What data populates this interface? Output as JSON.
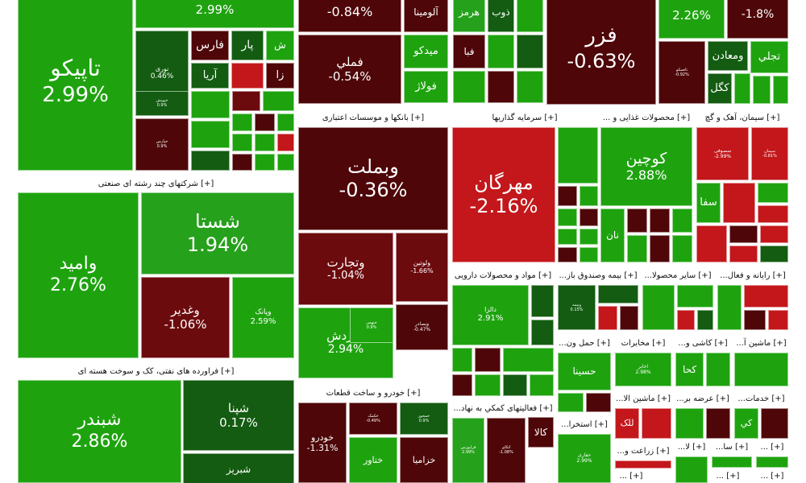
{
  "chart_data": {
    "type": "heatmap",
    "title": "",
    "unit": "%",
    "colors": {
      "strong_green": "#1ea30f",
      "mid_green": "#26a11c",
      "dark_green": "#135c11",
      "strong_red": "#c3171b",
      "dark_red": "#4e0608",
      "maroon": "#6c0b0e"
    },
    "sector_headers": [
      {
        "label": "[+] شرکتهای چند رشته ای صنعتی"
      },
      {
        "label": "[+] فراورده های نفتی، کک و سوخت هسته ای"
      },
      {
        "label": "[+] بانکها و موسسات اعتباری"
      },
      {
        "label": "[+] خودرو و ساخت قطعات"
      },
      {
        "label": "[+] سرمایه گذاریها"
      },
      {
        "label": "[+] محصولات غذایی و ..."
      },
      {
        "label": "[+] سیمان، آهک و گچ"
      },
      {
        "label": "[+] مواد و محصولات دارویی"
      },
      {
        "label": "[+] بیمه وصندوق باز..."
      },
      {
        "label": "[+] سایر محصولا..."
      },
      {
        "label": "[+] رایانه و فعال..."
      },
      {
        "label": "[+] حمل ون..."
      },
      {
        "label": "[+] مخابرات"
      },
      {
        "label": "[+] کاشی و..."
      },
      {
        "label": "[+] ماشین آ..."
      },
      {
        "label": "[+] فعالیتهای کمکي به نهاد..."
      },
      {
        "label": "[+] استخرا..."
      },
      {
        "label": "[+] ماشین الا..."
      },
      {
        "label": "[+] عرضه بر..."
      },
      {
        "label": "[+] خدمات..."
      },
      {
        "label": "[+] زراعت و..."
      },
      {
        "label": "[+] لا..."
      },
      {
        "label": "[+] سا..."
      },
      {
        "label": "[+] ..."
      },
      {
        "label": "[+] ..."
      },
      {
        "label": "[+] ..."
      },
      {
        "label": "[+] ..."
      }
    ],
    "tiles": [
      {
        "symbol": "تاپیکو",
        "change": "2.99%"
      },
      {
        "symbol": "",
        "change": "2.99%"
      },
      {
        "symbol": "نوری",
        "change": "0.46%"
      },
      {
        "symbol": "فارس",
        "change": ""
      },
      {
        "symbol": "پار",
        "change": ""
      },
      {
        "symbol": "ش",
        "change": ""
      },
      {
        "symbol": "آریا",
        "change": ""
      },
      {
        "symbol": "زا",
        "change": ""
      },
      {
        "symbol": "خپارس",
        "change": "0.9%"
      },
      {
        "symbol": "",
        "change": "-0.84%"
      },
      {
        "symbol": "آلومینا",
        "change": ""
      },
      {
        "symbol": "هرمز",
        "change": ""
      },
      {
        "symbol": "ذوب",
        "change": ""
      },
      {
        "symbol": "فملي",
        "change": "-0.54%"
      },
      {
        "symbol": "میدکو",
        "change": ""
      },
      {
        "symbol": "فبا",
        "change": ""
      },
      {
        "symbol": "فولاژ",
        "change": ""
      },
      {
        "symbol": "فزر",
        "change": "-0.63%"
      },
      {
        "symbol": "",
        "change": "2.26%"
      },
      {
        "symbol": "",
        "change": "-1.8%"
      },
      {
        "symbol": "تاصیکو",
        "change": "-0.92%"
      },
      {
        "symbol": "ومعادن",
        "change": ""
      },
      {
        "symbol": "تجلي",
        "change": ""
      },
      {
        "symbol": "کگل",
        "change": ""
      },
      {
        "symbol": "وامید",
        "change": "2.76%"
      },
      {
        "symbol": "شستا",
        "change": "1.94%"
      },
      {
        "symbol": "وغدیر",
        "change": "-1.06%"
      },
      {
        "symbol": "وپانک",
        "change": "2.59%"
      },
      {
        "symbol": "وبملت",
        "change": "-0.36%"
      },
      {
        "symbol": "وتجارت",
        "change": "-1.04%"
      },
      {
        "symbol": "ولوتین",
        "change": "-1.66%"
      },
      {
        "symbol": "وبصادر",
        "change": "-0.47%"
      },
      {
        "symbol": "وگردش",
        "change": "2.94%"
      },
      {
        "symbol": "مهرگان",
        "change": "-2.16%"
      },
      {
        "symbol": "کوچین",
        "change": "2.88%"
      },
      {
        "symbol": "نان",
        "change": ""
      },
      {
        "symbol": "سصوفی",
        "change": "-2.99%"
      },
      {
        "symbol": "سیمان",
        "change": "-0.81%"
      },
      {
        "symbol": "سفا",
        "change": ""
      },
      {
        "symbol": "شبندر",
        "change": "2.86%"
      },
      {
        "symbol": "شپنا",
        "change": "0.17%"
      },
      {
        "symbol": "شبریز",
        "change": ""
      },
      {
        "symbol": "خودرو",
        "change": "-1.31%"
      },
      {
        "symbol": "ختاور",
        "change": ""
      },
      {
        "symbol": "خزامیا",
        "change": ""
      },
      {
        "symbol": "دالزا",
        "change": "2.91%"
      },
      {
        "symbol": "وبیمه",
        "change": "0.15%"
      },
      {
        "symbol": "حسینا",
        "change": ""
      },
      {
        "symbol": "اخابر",
        "change": "2.98%"
      },
      {
        "symbol": "کحا",
        "change": ""
      },
      {
        "symbol": "کالا",
        "change": ""
      },
      {
        "symbol": "حفاری",
        "change": "2.99%"
      },
      {
        "symbol": "للک",
        "change": ""
      },
      {
        "symbol": "کي",
        "change": ""
      },
      {
        "symbol": "خکمک",
        "change": "-0.49%"
      },
      {
        "symbol": "خمحور",
        "change": "0.9%"
      },
      {
        "symbol": "فرابورس",
        "change": "2.99%"
      },
      {
        "symbol": "اتکای",
        "change": "-1.08%"
      },
      {
        "symbol": "خپویش",
        "change": "0.9%"
      },
      {
        "symbol": "خبهمن",
        "change": "0.9%"
      }
    ]
  }
}
